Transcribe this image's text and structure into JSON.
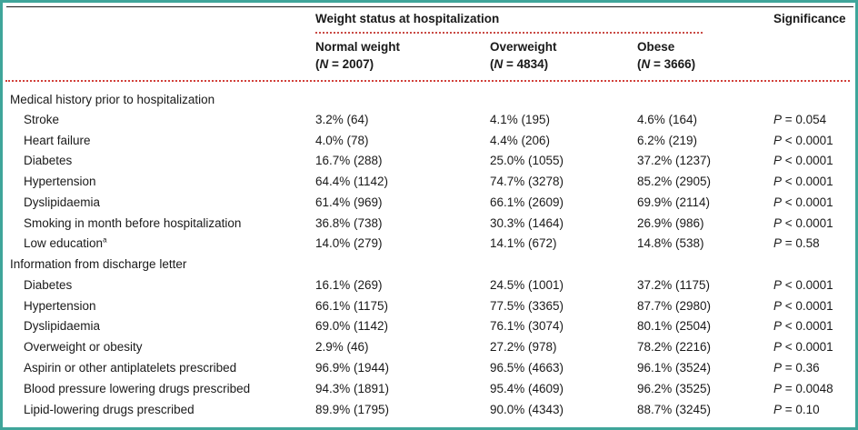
{
  "header": {
    "group_title": "Weight status at hospitalization",
    "significance": "Significance",
    "columns": [
      {
        "name": "Normal weight",
        "n": "(N = 2007)"
      },
      {
        "name": "Overweight",
        "n": "(N = 4834)"
      },
      {
        "name": "Obese",
        "n": "(N = 3666)"
      }
    ]
  },
  "sections": [
    {
      "title": "Medical history prior to hospitalization",
      "rows": [
        {
          "label": "Stroke",
          "values": [
            "3.2% (64)",
            "4.1% (195)",
            "4.6% (164)"
          ],
          "p": "P = 0.054"
        },
        {
          "label": "Heart failure",
          "values": [
            "4.0% (78)",
            "4.4% (206)",
            "6.2% (219)"
          ],
          "p": "P < 0.0001"
        },
        {
          "label": "Diabetes",
          "values": [
            "16.7% (288)",
            "25.0% (1055)",
            "37.2% (1237)"
          ],
          "p": "P < 0.0001"
        },
        {
          "label": "Hypertension",
          "values": [
            "64.4% (1142)",
            "74.7% (3278)",
            "85.2% (2905)"
          ],
          "p": "P < 0.0001"
        },
        {
          "label": "Dyslipidaemia",
          "values": [
            "61.4% (969)",
            "66.1% (2609)",
            "69.9% (2114)"
          ],
          "p": "P < 0.0001"
        },
        {
          "label": "Smoking in month before hospitalization",
          "values": [
            "36.8% (738)",
            "30.3% (1464)",
            "26.9% (986)"
          ],
          "p": "P < 0.0001"
        },
        {
          "label": "Low education",
          "footnote": "a",
          "values": [
            "14.0% (279)",
            "14.1% (672)",
            "14.8% (538)"
          ],
          "p": "P = 0.58"
        }
      ]
    },
    {
      "title": "Information from discharge letter",
      "rows": [
        {
          "label": "Diabetes",
          "values": [
            "16.1% (269)",
            "24.5% (1001)",
            "37.2% (1175)"
          ],
          "p": "P < 0.0001"
        },
        {
          "label": "Hypertension",
          "values": [
            "66.1% (1175)",
            "77.5% (3365)",
            "87.7% (2980)"
          ],
          "p": "P < 0.0001"
        },
        {
          "label": "Dyslipidaemia",
          "values": [
            "69.0% (1142)",
            "76.1% (3074)",
            "80.1% (2504)"
          ],
          "p": "P < 0.0001"
        },
        {
          "label": "Overweight or obesity",
          "values": [
            "2.9% (46)",
            "27.2% (978)",
            "78.2% (2216)"
          ],
          "p": "P < 0.0001"
        },
        {
          "label": "Aspirin or other antiplatelets prescribed",
          "values": [
            "96.9% (1944)",
            "96.5% (4663)",
            "96.1% (3524)"
          ],
          "p": "P = 0.36"
        },
        {
          "label": "Blood pressure lowering drugs prescribed",
          "values": [
            "94.3% (1891)",
            "95.4% (4609)",
            "96.2% (3525)"
          ],
          "p": "P = 0.0048"
        },
        {
          "label": "Lipid-lowering drugs prescribed",
          "values": [
            "89.9% (1795)",
            "90.0% (4343)",
            "88.7% (3245)"
          ],
          "p": "P = 0.10"
        }
      ]
    }
  ]
}
